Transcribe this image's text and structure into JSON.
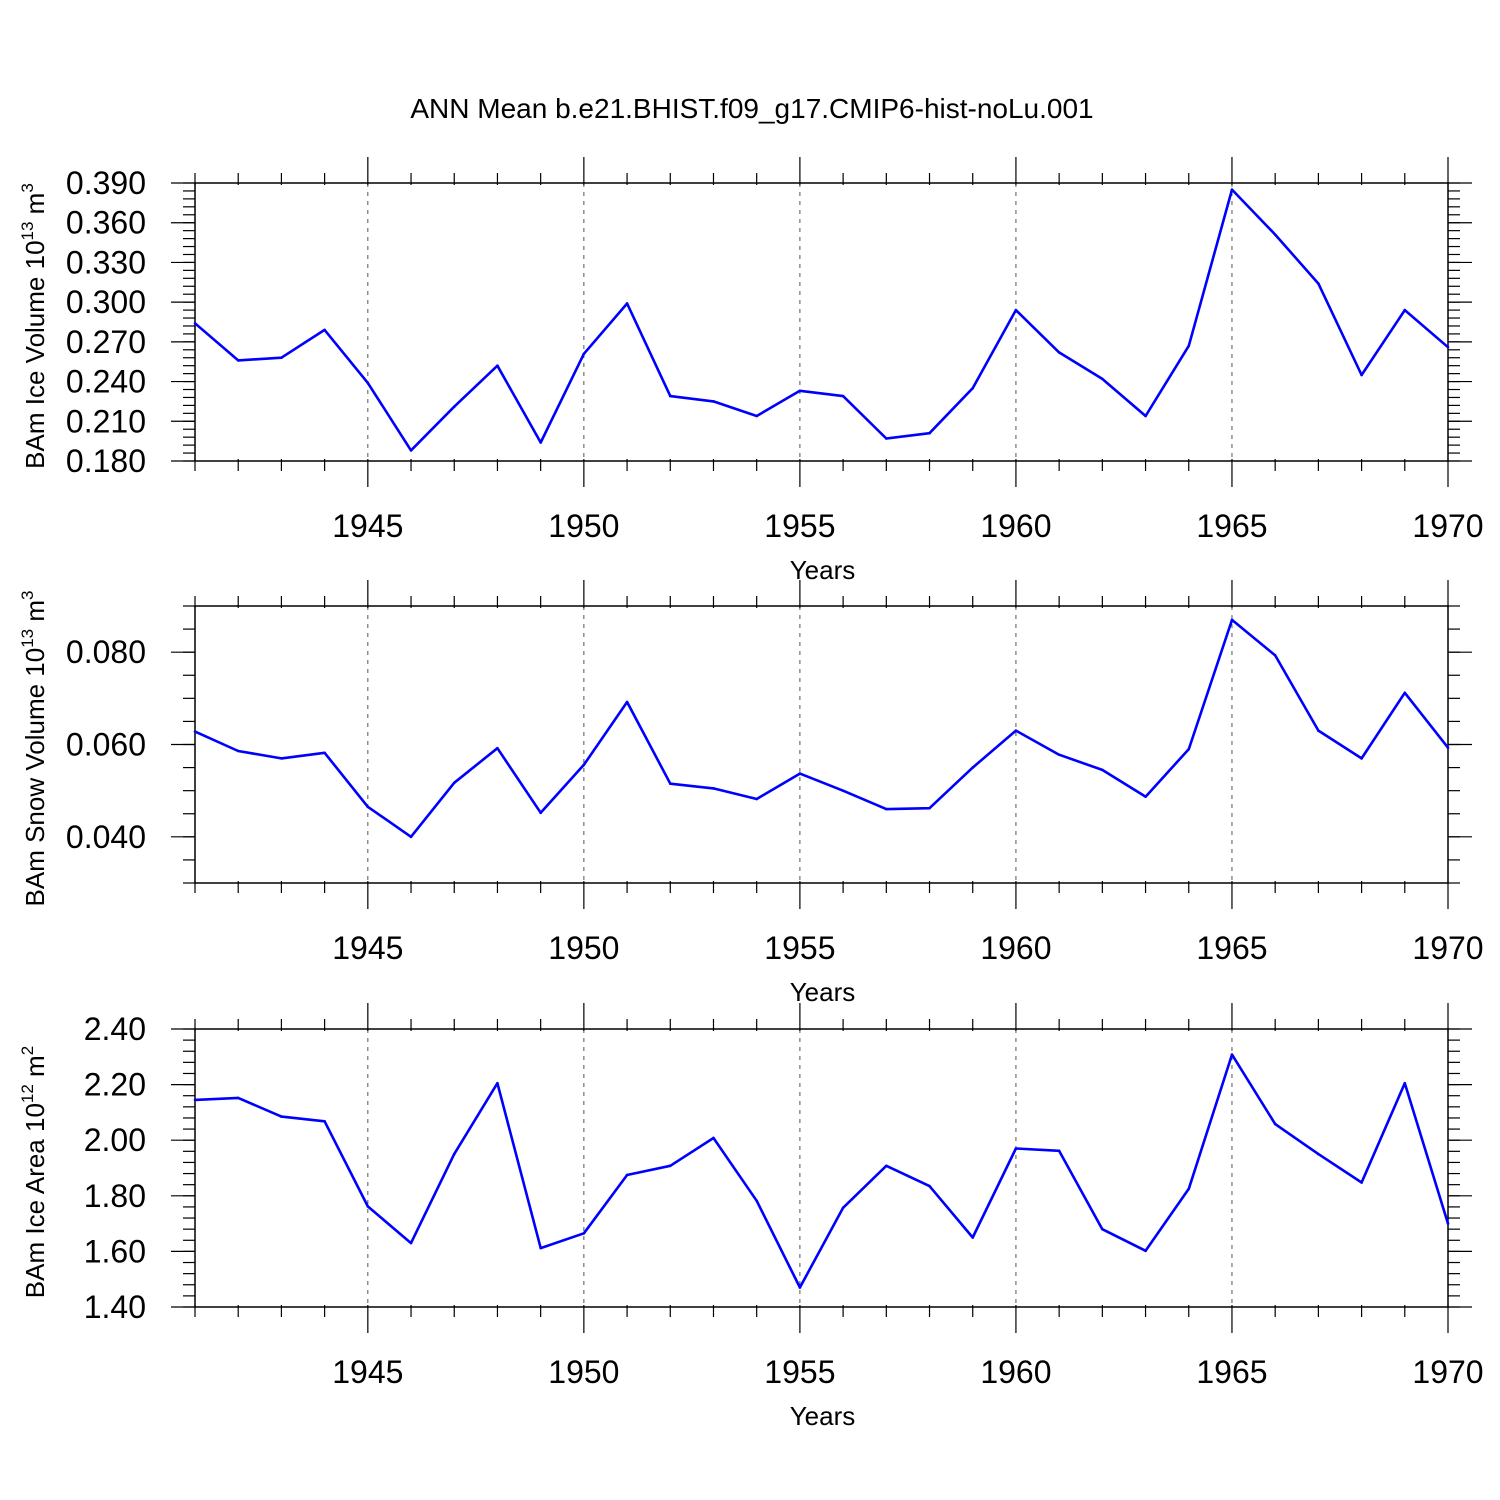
{
  "figure": {
    "title": "ANN Mean b.e21.BHIST.f09_g17.CMIP6-hist-noLu.001",
    "line_color": "#0000ff"
  },
  "chart_data": [
    {
      "type": "line",
      "title": "",
      "xlabel": "Years",
      "ylabel_main": "BAm Ice Volume 10",
      "ylabel_sup1": "13",
      "ylabel_mid": " m",
      "ylabel_sup2": "3",
      "xlim": [
        1941,
        1970
      ],
      "ylim": [
        0.18,
        0.39
      ],
      "xticks": [
        1945,
        1950,
        1955,
        1960,
        1965,
        1970
      ],
      "yticks": [
        0.18,
        0.21,
        0.24,
        0.27,
        0.3,
        0.33,
        0.36,
        0.39
      ],
      "ytick_labels": [
        "0.180",
        "0.210",
        "0.240",
        "0.270",
        "0.300",
        "0.330",
        "0.360",
        "0.390"
      ],
      "y_minor_step": 0.006,
      "grid_x": true,
      "x": [
        1941,
        1942,
        1943,
        1944,
        1945,
        1946,
        1947,
        1948,
        1949,
        1950,
        1951,
        1952,
        1953,
        1954,
        1955,
        1956,
        1957,
        1958,
        1959,
        1960,
        1961,
        1962,
        1963,
        1964,
        1965,
        1966,
        1967,
        1968,
        1969,
        1970
      ],
      "values": [
        0.284,
        0.256,
        0.258,
        0.279,
        0.239,
        0.188,
        0.221,
        0.252,
        0.194,
        0.261,
        0.299,
        0.229,
        0.225,
        0.214,
        0.233,
        0.229,
        0.197,
        0.201,
        0.235,
        0.294,
        0.262,
        0.242,
        0.214,
        0.267,
        0.385,
        0.351,
        0.314,
        0.245,
        0.294,
        0.266
      ]
    },
    {
      "type": "line",
      "title": "",
      "xlabel": "Years",
      "ylabel_main": "BAm Snow Volume 10",
      "ylabel_sup1": "13",
      "ylabel_mid": " m",
      "ylabel_sup2": "3",
      "xlim": [
        1941,
        1970
      ],
      "ylim": [
        0.03,
        0.09
      ],
      "xticks": [
        1945,
        1950,
        1955,
        1960,
        1965,
        1970
      ],
      "yticks": [
        0.04,
        0.06,
        0.08
      ],
      "ytick_labels": [
        "0.040",
        "0.060",
        "0.080"
      ],
      "y_minor_step": 0.005,
      "grid_x": true,
      "x": [
        1941,
        1942,
        1943,
        1944,
        1945,
        1946,
        1947,
        1948,
        1949,
        1950,
        1951,
        1952,
        1953,
        1954,
        1955,
        1956,
        1957,
        1958,
        1959,
        1960,
        1961,
        1962,
        1963,
        1964,
        1965,
        1966,
        1967,
        1968,
        1969,
        1970
      ],
      "values": [
        0.0628,
        0.0586,
        0.057,
        0.0582,
        0.0465,
        0.04,
        0.0517,
        0.0592,
        0.0452,
        0.0556,
        0.0692,
        0.0515,
        0.0505,
        0.0482,
        0.0537,
        0.05,
        0.046,
        0.0462,
        0.055,
        0.063,
        0.0578,
        0.0545,
        0.0487,
        0.059,
        0.087,
        0.0793,
        0.063,
        0.057,
        0.0712,
        0.0593
      ]
    },
    {
      "type": "line",
      "title": "",
      "xlabel": "Years",
      "ylabel_main": "BAm Ice Area 10",
      "ylabel_sup1": "12",
      "ylabel_mid": " m",
      "ylabel_sup2": "2",
      "xlim": [
        1941,
        1970
      ],
      "ylim": [
        1.4,
        2.4
      ],
      "xticks": [
        1945,
        1950,
        1955,
        1960,
        1965,
        1970
      ],
      "yticks": [
        1.4,
        1.6,
        1.8,
        2.0,
        2.2,
        2.4
      ],
      "ytick_labels": [
        "1.40",
        "1.60",
        "1.80",
        "2.00",
        "2.20",
        "2.40"
      ],
      "y_minor_step": 0.04,
      "grid_x": true,
      "x": [
        1941,
        1942,
        1943,
        1944,
        1945,
        1946,
        1947,
        1948,
        1949,
        1950,
        1951,
        1952,
        1953,
        1954,
        1955,
        1956,
        1957,
        1958,
        1959,
        1960,
        1961,
        1962,
        1963,
        1964,
        1965,
        1966,
        1967,
        1968,
        1969,
        1970
      ],
      "values": [
        2.145,
        2.152,
        2.085,
        2.068,
        1.762,
        1.63,
        1.95,
        2.205,
        1.612,
        1.665,
        1.875,
        1.908,
        2.008,
        1.782,
        1.47,
        1.757,
        1.908,
        1.835,
        1.65,
        1.97,
        1.962,
        1.68,
        1.602,
        1.825,
        2.308,
        2.058,
        1.95,
        1.848,
        2.205,
        1.7
      ]
    }
  ]
}
